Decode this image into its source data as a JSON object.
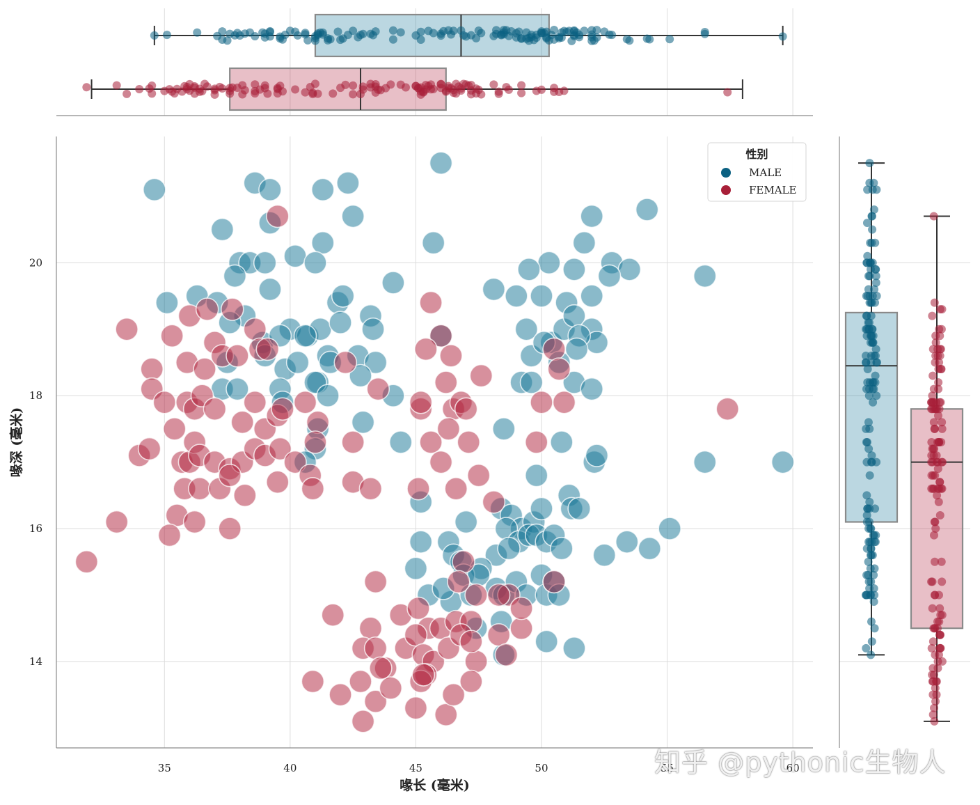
{
  "chart_data": {
    "type": "scatter",
    "xlabel": "喙长 (毫米)",
    "ylabel": "喙深 (毫米)",
    "xlim": [
      30.7,
      60.8
    ],
    "ylim": [
      12.7,
      21.9
    ],
    "xticks": [
      35,
      40,
      45,
      50,
      55,
      60
    ],
    "yticks": [
      14,
      16,
      18,
      20
    ],
    "grid": true,
    "legend": {
      "title": "性别",
      "placement": "top-right",
      "entries": [
        "MALE",
        "FEMALE"
      ]
    },
    "colors": {
      "MALE": "#1e7a9a",
      "FEMALE": "#b22a44",
      "male_dark": "#0b6182",
      "female_dark": "#a81f38"
    },
    "marginal_top": {
      "type": "box",
      "categories": [
        "MALE",
        "FEMALE"
      ],
      "boxes": [
        {
          "name": "MALE",
          "min": 34.6,
          "q1": 41.0,
          "median": 46.8,
          "q3": 50.3,
          "max": 59.6
        },
        {
          "name": "FEMALE",
          "min": 32.1,
          "q1": 37.6,
          "median": 42.8,
          "q3": 46.2,
          "max": 58.0
        }
      ]
    },
    "marginal_right": {
      "type": "box",
      "categories": [
        "MALE",
        "FEMALE"
      ],
      "boxes": [
        {
          "name": "MALE",
          "min": 14.1,
          "q1": 16.1,
          "median": 18.45,
          "q3": 19.25,
          "max": 21.5
        },
        {
          "name": "FEMALE",
          "min": 13.1,
          "q1": 14.5,
          "median": 17.0,
          "q3": 17.8,
          "max": 20.7
        }
      ]
    },
    "series": [
      {
        "name": "MALE",
        "points": [
          [
            34.6,
            21.1
          ],
          [
            38.6,
            21.2
          ],
          [
            39.2,
            21.1
          ],
          [
            41.3,
            21.1
          ],
          [
            42.3,
            21.2
          ],
          [
            46.0,
            21.5
          ],
          [
            42.5,
            20.7
          ],
          [
            37.3,
            20.5
          ],
          [
            39.2,
            20.6
          ],
          [
            41.3,
            20.3
          ],
          [
            45.7,
            20.3
          ],
          [
            54.2,
            20.8
          ],
          [
            52.0,
            20.7
          ],
          [
            51.7,
            20.3
          ],
          [
            38.0,
            20.0
          ],
          [
            38.4,
            20.0
          ],
          [
            39.0,
            20.0
          ],
          [
            40.2,
            20.1
          ],
          [
            41.0,
            20.0
          ],
          [
            37.8,
            19.8
          ],
          [
            39.2,
            19.6
          ],
          [
            44.1,
            19.7
          ],
          [
            50.3,
            20.0
          ],
          [
            49.5,
            19.9
          ],
          [
            51.3,
            19.9
          ],
          [
            52.8,
            20.0
          ],
          [
            53.5,
            19.9
          ],
          [
            56.5,
            19.8
          ],
          [
            52.7,
            19.8
          ],
          [
            48.1,
            19.6
          ],
          [
            49.0,
            19.5
          ],
          [
            50.0,
            19.5
          ],
          [
            51.0,
            19.4
          ],
          [
            52.0,
            19.5
          ],
          [
            35.1,
            19.4
          ],
          [
            36.3,
            19.5
          ],
          [
            37.1,
            19.4
          ],
          [
            38.2,
            19.2
          ],
          [
            41.9,
            19.4
          ],
          [
            42.1,
            19.5
          ],
          [
            43.2,
            19.2
          ],
          [
            37.6,
            19.1
          ],
          [
            40.0,
            19.0
          ],
          [
            40.7,
            18.9
          ],
          [
            41.2,
            19.0
          ],
          [
            42.0,
            19.1
          ],
          [
            43.3,
            19.0
          ],
          [
            38.9,
            18.8
          ],
          [
            39.6,
            18.9
          ],
          [
            40.6,
            18.9
          ],
          [
            41.5,
            18.6
          ],
          [
            42.7,
            18.6
          ],
          [
            43.4,
            18.5
          ],
          [
            49.4,
            19.0
          ],
          [
            50.4,
            18.8
          ],
          [
            50.9,
            19.0
          ],
          [
            51.3,
            19.2
          ],
          [
            52.0,
            19.0
          ],
          [
            52.2,
            18.8
          ],
          [
            51.5,
            18.9
          ],
          [
            37.5,
            18.5
          ],
          [
            39.0,
            18.6
          ],
          [
            39.8,
            18.4
          ],
          [
            40.3,
            18.5
          ],
          [
            41.1,
            18.2
          ],
          [
            41.6,
            18.5
          ],
          [
            42.8,
            18.3
          ],
          [
            49.6,
            18.6
          ],
          [
            50.1,
            18.8
          ],
          [
            51.4,
            18.7
          ],
          [
            50.7,
            18.5
          ],
          [
            37.3,
            18.1
          ],
          [
            37.9,
            18.1
          ],
          [
            39.6,
            18.1
          ],
          [
            39.7,
            17.9
          ],
          [
            41.0,
            18.2
          ],
          [
            41.5,
            18.0
          ],
          [
            44.1,
            18.0
          ],
          [
            49.2,
            18.2
          ],
          [
            49.6,
            18.2
          ],
          [
            51.3,
            18.2
          ],
          [
            52.0,
            18.1
          ],
          [
            41.1,
            17.5
          ],
          [
            42.9,
            17.6
          ],
          [
            44.4,
            17.3
          ],
          [
            48.5,
            17.5
          ],
          [
            50.8,
            17.3
          ],
          [
            41.0,
            17.2
          ],
          [
            40.6,
            17.0
          ],
          [
            52.1,
            17.0
          ],
          [
            52.2,
            17.1
          ],
          [
            56.5,
            17.0
          ],
          [
            59.6,
            17.0
          ],
          [
            49.8,
            16.8
          ],
          [
            51.1,
            16.5
          ],
          [
            51.2,
            16.3
          ],
          [
            51.5,
            16.3
          ],
          [
            45.2,
            16.4
          ],
          [
            47.0,
            16.1
          ],
          [
            48.4,
            16.3
          ],
          [
            48.8,
            16.2
          ],
          [
            49.2,
            16.0
          ],
          [
            49.7,
            16.1
          ],
          [
            50.0,
            16.3
          ],
          [
            48.6,
            16.0
          ],
          [
            49.1,
            15.8
          ],
          [
            49.5,
            15.9
          ],
          [
            49.8,
            15.9
          ],
          [
            50.2,
            15.8
          ],
          [
            50.5,
            15.9
          ],
          [
            50.8,
            15.7
          ],
          [
            55.1,
            16.0
          ],
          [
            45.2,
            15.8
          ],
          [
            46.3,
            15.8
          ],
          [
            46.5,
            15.6
          ],
          [
            48.2,
            15.6
          ],
          [
            48.7,
            15.7
          ],
          [
            53.4,
            15.8
          ],
          [
            54.3,
            15.7
          ],
          [
            52.5,
            15.6
          ],
          [
            45.0,
            15.4
          ],
          [
            46.8,
            15.5
          ],
          [
            47.6,
            15.4
          ],
          [
            46.9,
            15.3
          ],
          [
            47.5,
            15.3
          ],
          [
            48.2,
            15.1
          ],
          [
            48.5,
            15.0
          ],
          [
            49.0,
            15.2
          ],
          [
            49.4,
            15.0
          ],
          [
            50.0,
            15.3
          ],
          [
            50.2,
            15.0
          ],
          [
            50.5,
            15.2
          ],
          [
            50.7,
            15.0
          ],
          [
            45.5,
            15.0
          ],
          [
            46.4,
            14.9
          ],
          [
            46.1,
            15.1
          ],
          [
            47.2,
            15.0
          ],
          [
            48.4,
            14.6
          ],
          [
            48.5,
            14.1
          ],
          [
            50.2,
            14.3
          ],
          [
            51.3,
            14.2
          ],
          [
            47.4,
            14.5
          ],
          [
            46.0,
            18.9
          ]
        ]
      },
      {
        "name": "FEMALE",
        "points": [
          [
            33.5,
            19.0
          ],
          [
            35.3,
            18.9
          ],
          [
            36.0,
            19.2
          ],
          [
            36.7,
            19.3
          ],
          [
            37.7,
            19.3
          ],
          [
            38.6,
            19.0
          ],
          [
            39.5,
            20.7
          ],
          [
            45.6,
            19.4
          ],
          [
            46.0,
            18.9
          ],
          [
            34.5,
            18.4
          ],
          [
            35.9,
            18.5
          ],
          [
            36.6,
            18.4
          ],
          [
            37.0,
            18.8
          ],
          [
            37.3,
            18.6
          ],
          [
            37.9,
            18.6
          ],
          [
            38.8,
            18.7
          ],
          [
            39.1,
            18.7
          ],
          [
            45.4,
            18.7
          ],
          [
            46.4,
            18.6
          ],
          [
            42.2,
            18.5
          ],
          [
            34.5,
            18.1
          ],
          [
            35.0,
            17.9
          ],
          [
            35.9,
            17.9
          ],
          [
            36.2,
            17.8
          ],
          [
            36.5,
            18.0
          ],
          [
            37.0,
            17.8
          ],
          [
            38.1,
            17.6
          ],
          [
            38.6,
            17.9
          ],
          [
            39.0,
            17.5
          ],
          [
            39.5,
            17.7
          ],
          [
            39.7,
            17.8
          ],
          [
            40.6,
            17.9
          ],
          [
            41.1,
            17.6
          ],
          [
            43.5,
            18.1
          ],
          [
            45.2,
            17.8
          ],
          [
            46.2,
            18.2
          ],
          [
            46.5,
            17.8
          ],
          [
            46.8,
            17.9
          ],
          [
            47.0,
            17.8
          ],
          [
            47.6,
            18.3
          ],
          [
            50.0,
            17.9
          ],
          [
            50.9,
            17.9
          ],
          [
            50.5,
            18.7
          ],
          [
            50.7,
            18.4
          ],
          [
            57.4,
            17.8
          ],
          [
            34.0,
            17.1
          ],
          [
            34.4,
            17.2
          ],
          [
            35.4,
            17.5
          ],
          [
            35.7,
            17.0
          ],
          [
            36.0,
            17.0
          ],
          [
            36.2,
            17.3
          ],
          [
            36.4,
            17.1
          ],
          [
            37.0,
            17.0
          ],
          [
            37.6,
            16.9
          ],
          [
            38.1,
            17.0
          ],
          [
            38.6,
            17.2
          ],
          [
            39.0,
            17.1
          ],
          [
            39.6,
            17.2
          ],
          [
            40.2,
            17.0
          ],
          [
            40.8,
            16.8
          ],
          [
            41.0,
            17.3
          ],
          [
            42.5,
            17.3
          ],
          [
            45.6,
            17.3
          ],
          [
            46.0,
            17.0
          ],
          [
            46.3,
            17.5
          ],
          [
            47.1,
            17.3
          ],
          [
            49.8,
            17.3
          ],
          [
            35.8,
            16.6
          ],
          [
            36.4,
            16.6
          ],
          [
            37.2,
            16.6
          ],
          [
            37.6,
            16.8
          ],
          [
            38.2,
            16.5
          ],
          [
            39.5,
            16.7
          ],
          [
            40.9,
            16.6
          ],
          [
            42.5,
            16.7
          ],
          [
            43.2,
            16.6
          ],
          [
            45.1,
            16.6
          ],
          [
            46.6,
            16.6
          ],
          [
            47.5,
            16.8
          ],
          [
            48.1,
            16.4
          ],
          [
            33.1,
            16.1
          ],
          [
            35.5,
            16.2
          ],
          [
            36.2,
            16.1
          ],
          [
            37.6,
            16.0
          ],
          [
            35.2,
            15.9
          ],
          [
            31.9,
            15.5
          ],
          [
            46.9,
            15.5
          ],
          [
            43.4,
            15.2
          ],
          [
            50.5,
            15.2
          ],
          [
            47.4,
            15.0
          ],
          [
            48.7,
            15.0
          ],
          [
            41.7,
            14.7
          ],
          [
            44.4,
            14.7
          ],
          [
            45.1,
            14.8
          ],
          [
            45.5,
            14.5
          ],
          [
            46.0,
            14.5
          ],
          [
            46.6,
            14.6
          ],
          [
            47.2,
            14.6
          ],
          [
            48.3,
            14.4
          ],
          [
            49.2,
            14.5
          ],
          [
            43.2,
            14.5
          ],
          [
            42.9,
            14.2
          ],
          [
            43.4,
            14.2
          ],
          [
            44.6,
            14.2
          ],
          [
            45.0,
            14.4
          ],
          [
            45.3,
            14.1
          ],
          [
            45.7,
            14.0
          ],
          [
            46.3,
            14.2
          ],
          [
            46.8,
            14.4
          ],
          [
            47.4,
            14.0
          ],
          [
            40.9,
            13.7
          ],
          [
            42.0,
            13.5
          ],
          [
            42.8,
            13.7
          ],
          [
            43.4,
            13.4
          ],
          [
            43.8,
            13.9
          ],
          [
            44.0,
            13.6
          ],
          [
            45.0,
            13.3
          ],
          [
            45.4,
            13.8
          ],
          [
            46.2,
            13.2
          ],
          [
            46.5,
            13.5
          ],
          [
            47.2,
            13.7
          ],
          [
            42.9,
            13.1
          ],
          [
            45.2,
            13.7
          ],
          [
            48.6,
            14.1
          ],
          [
            49.2,
            14.8
          ],
          [
            48.3,
            15.0
          ],
          [
            47.2,
            14.3
          ],
          [
            45.3,
            13.8
          ],
          [
            45.2,
            17.9
          ],
          [
            46.7,
            15.2
          ],
          [
            43.6,
            13.9
          ]
        ]
      }
    ]
  },
  "watermark": "知乎 @pythonic生物人"
}
